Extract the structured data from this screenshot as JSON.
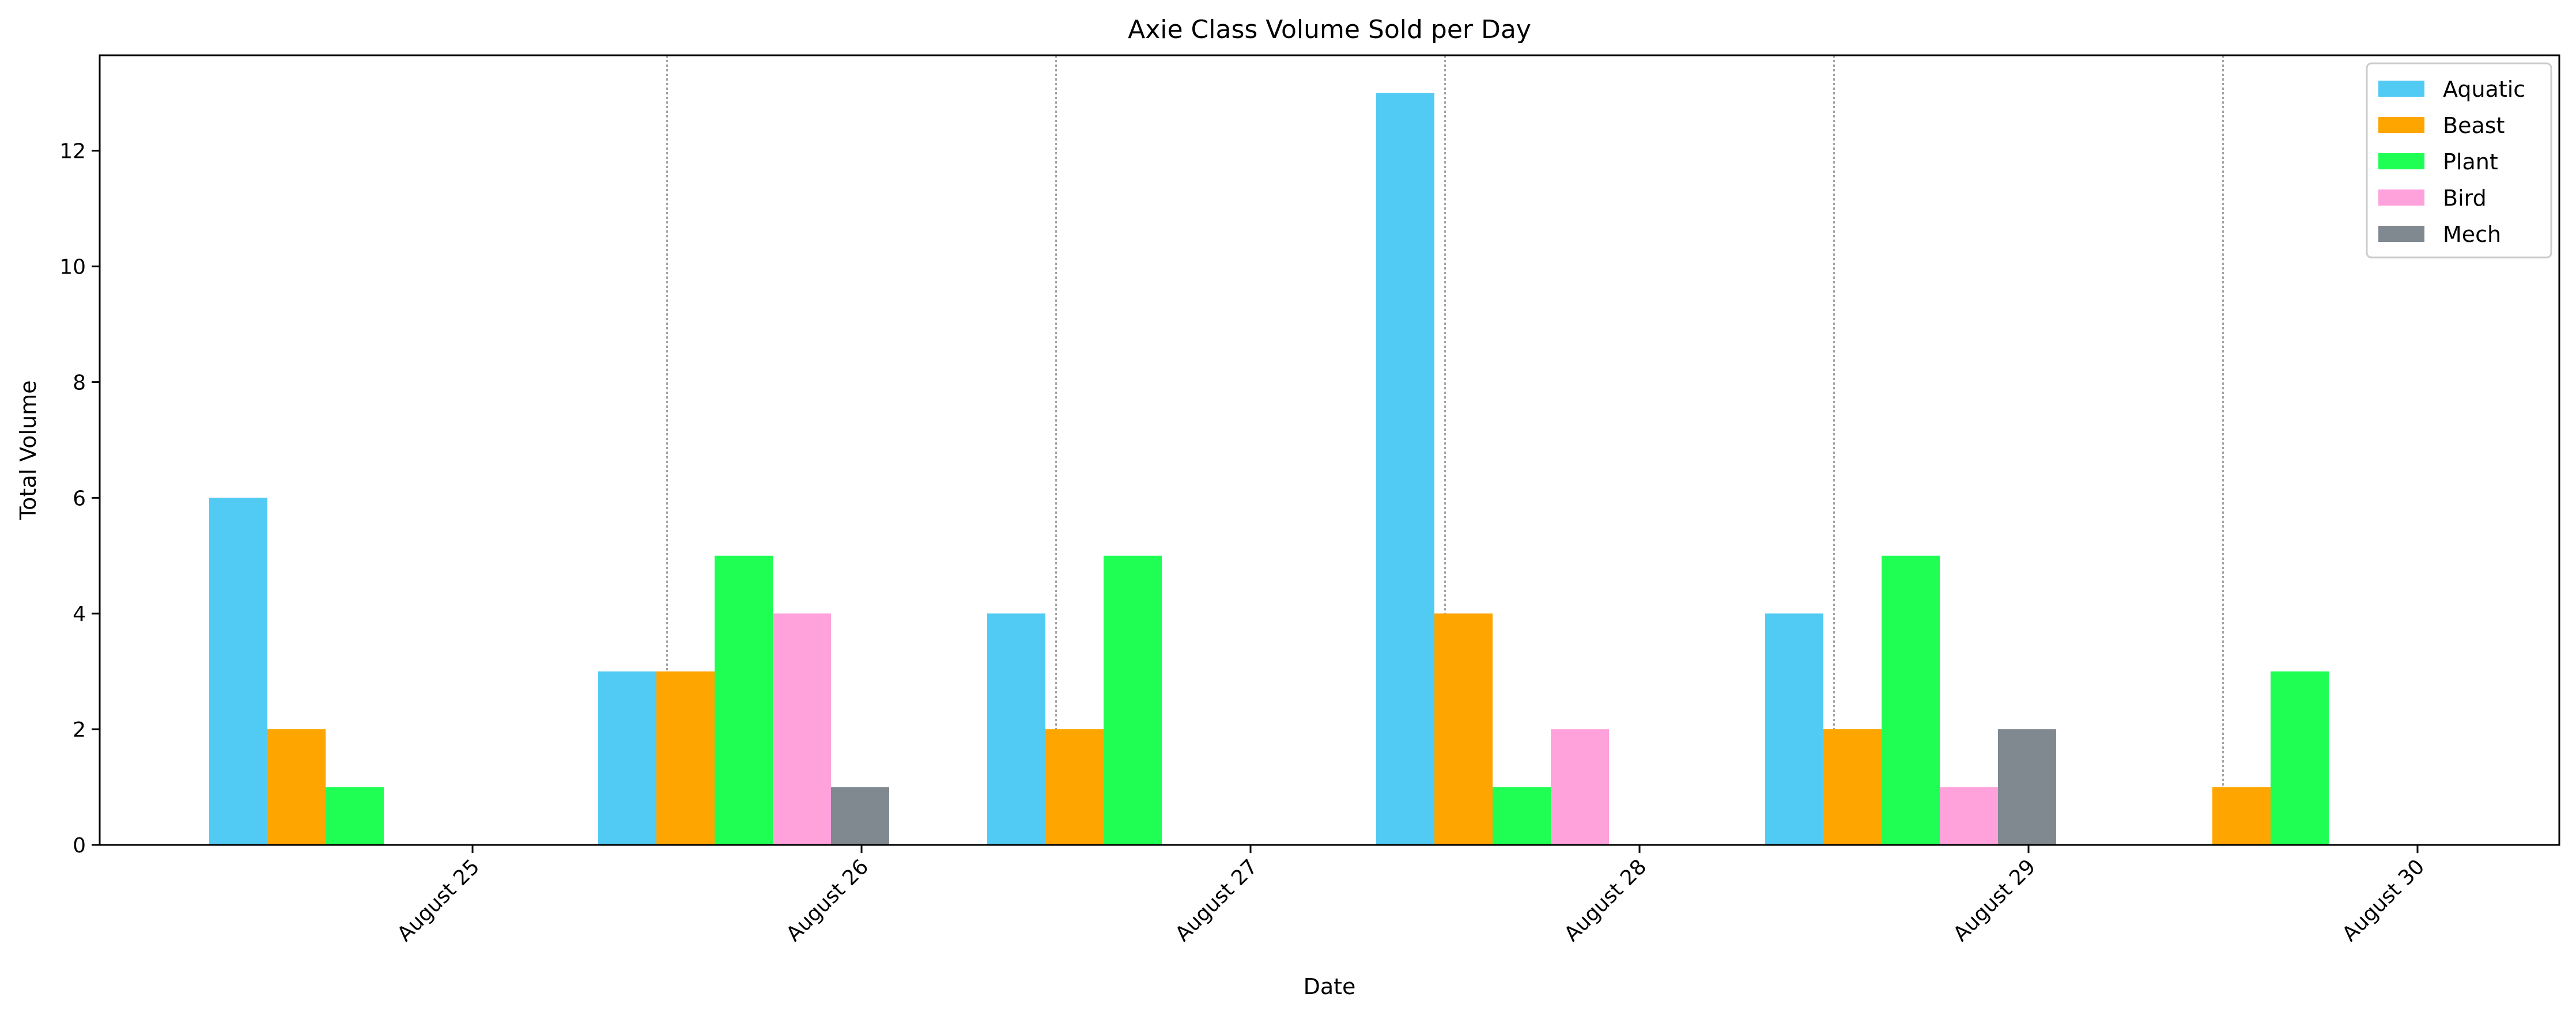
{
  "chart_data": {
    "type": "bar",
    "title": "Axie Class Volume Sold per Day",
    "xlabel": "Date",
    "ylabel": "Total Volume",
    "categories": [
      "August 25",
      "August 26",
      "August 27",
      "August 28",
      "August 29",
      "August 30"
    ],
    "series": [
      {
        "name": "Aquatic",
        "color": "#52cbf4",
        "values": [
          6,
          3,
          4,
          13,
          4,
          0
        ]
      },
      {
        "name": "Beast",
        "color": "#ffa500",
        "values": [
          2,
          3,
          2,
          4,
          2,
          1
        ]
      },
      {
        "name": "Plant",
        "color": "#1fff53",
        "values": [
          1,
          5,
          5,
          1,
          5,
          3
        ]
      },
      {
        "name": "Bird",
        "color": "#ffa2dc",
        "values": [
          0,
          4,
          0,
          2,
          1,
          0
        ]
      },
      {
        "name": "Mech",
        "color": "#818990",
        "values": [
          0,
          1,
          0,
          0,
          2,
          0
        ]
      }
    ],
    "ylim": [
      0,
      13.65
    ],
    "yticks": [
      "0",
      "2",
      "4",
      "6",
      "8",
      "10",
      "12"
    ],
    "tick_label_rotation": -45,
    "day_separators": "dotted",
    "legend_position": "top-right",
    "grid": false
  }
}
